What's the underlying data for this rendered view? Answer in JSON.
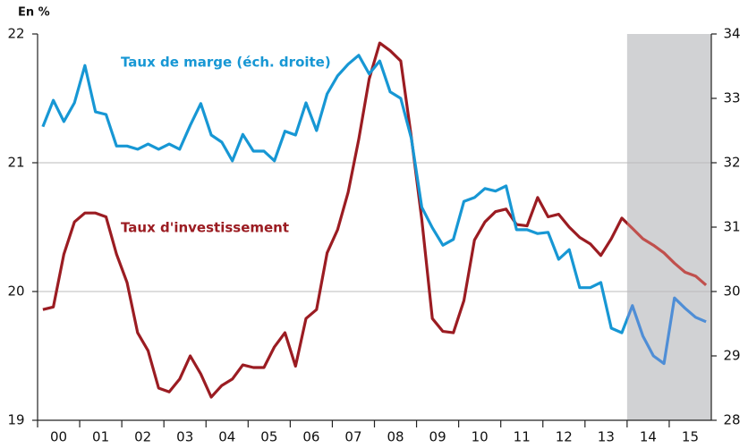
{
  "chart_data": {
    "type": "line",
    "y_label": "En %",
    "xlim": [
      2000,
      2016
    ],
    "xticks": [
      {
        "value": 2000,
        "label": "00"
      },
      {
        "value": 2001,
        "label": "01"
      },
      {
        "value": 2002,
        "label": "02"
      },
      {
        "value": 2003,
        "label": "03"
      },
      {
        "value": 2004,
        "label": "04"
      },
      {
        "value": 2005,
        "label": "05"
      },
      {
        "value": 2006,
        "label": "06"
      },
      {
        "value": 2007,
        "label": "07"
      },
      {
        "value": 2008,
        "label": "08"
      },
      {
        "value": 2009,
        "label": "09"
      },
      {
        "value": 2010,
        "label": "10"
      },
      {
        "value": 2011,
        "label": "11"
      },
      {
        "value": 2012,
        "label": "12"
      },
      {
        "value": 2013,
        "label": "13"
      },
      {
        "value": 2014,
        "label": "14"
      },
      {
        "value": 2015,
        "label": "15"
      }
    ],
    "ylim": [
      19,
      22
    ],
    "yticks": [
      19,
      20,
      21,
      22
    ],
    "y2lim": [
      28,
      34
    ],
    "y2ticks": [
      28,
      29,
      30,
      31,
      32,
      33,
      34
    ],
    "grid": true,
    "forecast_start": 2014,
    "x": [
      2000.125,
      2000.375,
      2000.625,
      2000.875,
      2001.125,
      2001.375,
      2001.625,
      2001.875,
      2002.125,
      2002.375,
      2002.625,
      2002.875,
      2003.125,
      2003.375,
      2003.625,
      2003.875,
      2004.125,
      2004.375,
      2004.625,
      2004.875,
      2005.125,
      2005.375,
      2005.625,
      2005.875,
      2006.125,
      2006.375,
      2006.625,
      2006.875,
      2007.125,
      2007.375,
      2007.625,
      2007.875,
      2008.125,
      2008.375,
      2008.625,
      2008.875,
      2009.125,
      2009.375,
      2009.625,
      2009.875,
      2010.125,
      2010.375,
      2010.625,
      2010.875,
      2011.125,
      2011.375,
      2011.625,
      2011.875,
      2012.125,
      2012.375,
      2012.625,
      2012.875,
      2013.125,
      2013.375,
      2013.625,
      2013.875,
      2014.125,
      2014.375,
      2014.625,
      2014.875,
      2015.125,
      2015.375,
      2015.625,
      2015.875
    ],
    "series": [
      {
        "name": "Taux d'investissement",
        "color": "#9b1c22",
        "forecast_color": "#c0504d",
        "axis": "y",
        "values": [
          19.86,
          19.88,
          20.29,
          20.54,
          20.61,
          20.61,
          20.58,
          20.29,
          20.07,
          19.68,
          19.54,
          19.25,
          19.22,
          19.32,
          19.5,
          19.36,
          19.18,
          19.27,
          19.32,
          19.43,
          19.41,
          19.41,
          19.57,
          19.68,
          19.42,
          19.79,
          19.86,
          20.3,
          20.48,
          20.77,
          21.18,
          21.65,
          21.93,
          21.87,
          21.79,
          21.2,
          20.56,
          19.79,
          19.69,
          19.68,
          19.93,
          20.4,
          20.54,
          20.62,
          20.64,
          20.52,
          20.51,
          20.73,
          20.58,
          20.6,
          20.5,
          20.42,
          20.37,
          20.28,
          20.41,
          20.57,
          20.49,
          20.41,
          20.36,
          20.3,
          20.22,
          20.15,
          20.12,
          20.05
        ]
      },
      {
        "name": "Taux de marge (éch. droite)",
        "color": "#1797d4",
        "forecast_color": "#4f8ed6",
        "axis": "y2",
        "values": [
          32.56,
          32.97,
          32.64,
          32.93,
          33.51,
          32.79,
          32.75,
          32.26,
          32.26,
          32.21,
          32.29,
          32.21,
          32.29,
          32.21,
          32.58,
          32.92,
          32.43,
          32.32,
          32.03,
          32.44,
          32.18,
          32.18,
          32.03,
          32.49,
          32.43,
          32.93,
          32.5,
          33.07,
          33.35,
          33.53,
          33.67,
          33.38,
          33.58,
          33.1,
          33.0,
          32.38,
          31.31,
          30.99,
          30.72,
          30.81,
          31.4,
          31.46,
          31.6,
          31.56,
          31.64,
          30.96,
          30.96,
          30.9,
          30.92,
          30.5,
          30.65,
          30.06,
          30.06,
          30.14,
          29.43,
          29.36,
          29.78,
          29.31,
          29.0,
          28.88,
          29.9,
          29.74,
          29.6,
          29.53
        ]
      }
    ]
  }
}
